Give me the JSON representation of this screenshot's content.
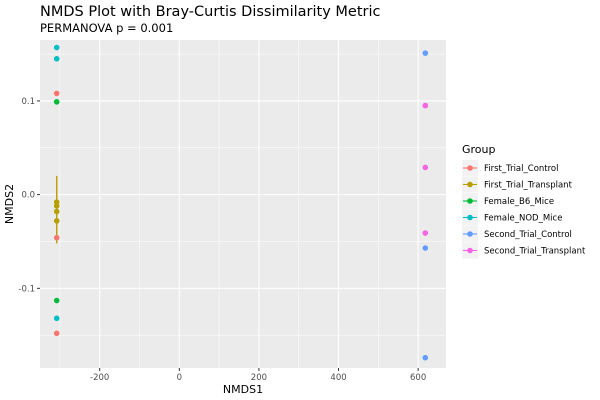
{
  "chart_data": {
    "type": "scatter",
    "title": "NMDS Plot with Bray-Curtis Dissimilarity Metric",
    "subtitle": "PERMANOVA p = 0.001",
    "xlabel": "NMDS1",
    "ylabel": "NMDS2",
    "xlim": [
      -350,
      670
    ],
    "ylim": [
      -0.185,
      0.165
    ],
    "x_ticks": [
      -200,
      0,
      200,
      400,
      600
    ],
    "x_tick_labels": [
      "-200",
      "0",
      "200",
      "400",
      "600"
    ],
    "y_ticks": [
      -0.1,
      0.0,
      0.1
    ],
    "y_tick_labels": [
      "-0.1",
      "0.0",
      "0.1"
    ],
    "grid": true,
    "legend": {
      "title": "Group",
      "position": "right"
    },
    "series": [
      {
        "name": "First_Trial_Control",
        "color": "#F8766D",
        "points": [
          {
            "x": -308,
            "y": 0.108
          },
          {
            "x": -308,
            "y": -0.046
          },
          {
            "x": -308,
            "y": -0.148
          }
        ]
      },
      {
        "name": "First_Trial_Transplant",
        "color": "#B79F00",
        "points": [
          {
            "x": -308,
            "y": -0.008
          },
          {
            "x": -308,
            "y": -0.012
          },
          {
            "x": -308,
            "y": -0.018
          },
          {
            "x": -308,
            "y": -0.028
          }
        ],
        "error_bar": {
          "x": -308,
          "ymin": -0.052,
          "ymax": 0.02
        }
      },
      {
        "name": "Female_B6_Mice",
        "color": "#00BA38",
        "points": [
          {
            "x": -308,
            "y": 0.099
          },
          {
            "x": -308,
            "y": -0.113
          }
        ]
      },
      {
        "name": "Female_NOD_Mice",
        "color": "#00BFC4",
        "points": [
          {
            "x": -308,
            "y": 0.157
          },
          {
            "x": -308,
            "y": 0.145
          },
          {
            "x": -308,
            "y": -0.132
          }
        ]
      },
      {
        "name": "Second_Trial_Control",
        "color": "#619CFF",
        "points": [
          {
            "x": 618,
            "y": 0.151
          },
          {
            "x": 618,
            "y": -0.057
          },
          {
            "x": 618,
            "y": -0.174
          }
        ]
      },
      {
        "name": "Second_Trial_Transplant",
        "color": "#F564E3",
        "points": [
          {
            "x": 618,
            "y": 0.095
          },
          {
            "x": 618,
            "y": 0.029
          },
          {
            "x": 618,
            "y": -0.041
          }
        ]
      }
    ]
  }
}
